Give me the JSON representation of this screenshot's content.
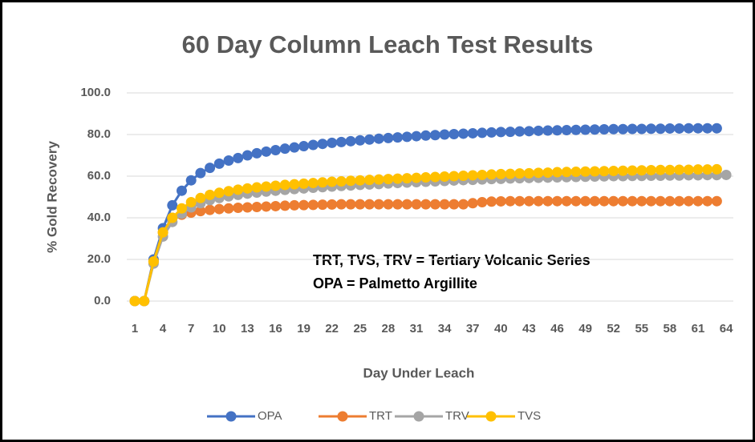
{
  "chart_data": {
    "type": "line",
    "title": "60 Day Column Leach Test Results",
    "x_label": "Day Under Leach",
    "y_label": "% Gold Recovery",
    "annotations": [
      "TRT, TVS, TRV = Tertiary Volcanic Series",
      "OPA = Palmetto Argillite"
    ],
    "categories": [
      1,
      null,
      null,
      4,
      null,
      null,
      7,
      null,
      null,
      10,
      null,
      null,
      13,
      null,
      null,
      16,
      null,
      null,
      19,
      null,
      null,
      22,
      null,
      null,
      25,
      null,
      null,
      28,
      null,
      null,
      31,
      null,
      null,
      34,
      null,
      null,
      37,
      null,
      null,
      40,
      null,
      null,
      43,
      null,
      null,
      46,
      null,
      null,
      49,
      null,
      null,
      52,
      null,
      null,
      55,
      null,
      null,
      58,
      null,
      null,
      61,
      null,
      null,
      64
    ],
    "ylim": [
      0,
      100
    ],
    "yticks": [
      {
        "value": 0,
        "label": "0.0"
      },
      {
        "value": 20,
        "label": "20.0"
      },
      {
        "value": 40,
        "label": "40.0"
      },
      {
        "value": 60,
        "label": "60.0"
      },
      {
        "value": 80,
        "label": "80.0"
      },
      {
        "value": 100,
        "label": "100.0"
      }
    ],
    "grid": true,
    "legend": "bottom",
    "series": [
      {
        "name": "OPA",
        "color": "#4472c4",
        "values": [
          0,
          0,
          20,
          35,
          46,
          53,
          58,
          61.5,
          64,
          66,
          67.5,
          68.7,
          70,
          71,
          71.8,
          72.5,
          73.2,
          73.8,
          74.4,
          75,
          75.5,
          76,
          76.4,
          76.8,
          77.2,
          77.6,
          78,
          78.3,
          78.6,
          78.9,
          79.2,
          79.5,
          79.7,
          80,
          80.2,
          80.4,
          80.6,
          80.8,
          81,
          81.2,
          81.3,
          81.5,
          81.6,
          81.8,
          81.9,
          82,
          82.1,
          82.2,
          82.3,
          82.4,
          82.5,
          82.6,
          82.6,
          82.7,
          82.7,
          82.8,
          82.8,
          82.9,
          82.9,
          83,
          83,
          83,
          83,
          null
        ]
      },
      {
        "name": "TRT",
        "color": "#ed7d31",
        "values": [
          0,
          0,
          19,
          33,
          40,
          41.5,
          42.5,
          43.2,
          43.8,
          44.2,
          44.5,
          44.8,
          45,
          45.2,
          45.4,
          45.6,
          45.8,
          46,
          46.1,
          46.2,
          46.3,
          46.4,
          46.5,
          46.5,
          46.5,
          46.5,
          46.5,
          46.5,
          46.5,
          46.5,
          46.5,
          46.5,
          46.5,
          46.5,
          46.5,
          46.5,
          47,
          47.5,
          47.8,
          47.9,
          48,
          48,
          48,
          48,
          48,
          48,
          48,
          48,
          48,
          48,
          48,
          48,
          48,
          48,
          48,
          48,
          48,
          48,
          48,
          48,
          48,
          48,
          48,
          null
        ]
      },
      {
        "name": "TRV",
        "color": "#a5a5a5",
        "values": [
          0,
          0,
          18,
          31,
          38,
          42,
          45,
          47,
          48.5,
          49.5,
          50.3,
          51,
          51.6,
          52.1,
          52.6,
          53,
          53.4,
          53.8,
          54.1,
          54.4,
          54.7,
          55,
          55.3,
          55.5,
          55.8,
          56,
          56.2,
          56.5,
          56.7,
          56.9,
          57.1,
          57.3,
          57.5,
          57.7,
          57.9,
          58.1,
          58.2,
          58.4,
          58.6,
          58.7,
          58.9,
          59,
          59.1,
          59.2,
          59.3,
          59.4,
          59.5,
          59.6,
          59.7,
          59.8,
          59.9,
          60,
          60,
          60.1,
          60.1,
          60.2,
          60.2,
          60.3,
          60.3,
          60.4,
          60.4,
          60.5,
          60.5,
          60.6
        ]
      },
      {
        "name": "TVS",
        "color": "#ffc000",
        "values": [
          0,
          0,
          19,
          33,
          40,
          44.5,
          47.5,
          49.5,
          51,
          52,
          52.8,
          53.5,
          54.1,
          54.6,
          55,
          55.4,
          55.8,
          56.1,
          56.4,
          56.7,
          57,
          57.3,
          57.5,
          57.8,
          58,
          58.2,
          58.4,
          58.6,
          58.8,
          59,
          59.2,
          59.4,
          59.6,
          59.8,
          60,
          60.2,
          60.4,
          60.6,
          60.8,
          61,
          61.1,
          61.3,
          61.4,
          61.6,
          61.7,
          61.9,
          62,
          62.1,
          62.2,
          62.3,
          62.4,
          62.5,
          62.6,
          62.7,
          62.8,
          62.9,
          63,
          63,
          63.1,
          63.1,
          63.2,
          63.2,
          63.3,
          null
        ]
      }
    ]
  }
}
